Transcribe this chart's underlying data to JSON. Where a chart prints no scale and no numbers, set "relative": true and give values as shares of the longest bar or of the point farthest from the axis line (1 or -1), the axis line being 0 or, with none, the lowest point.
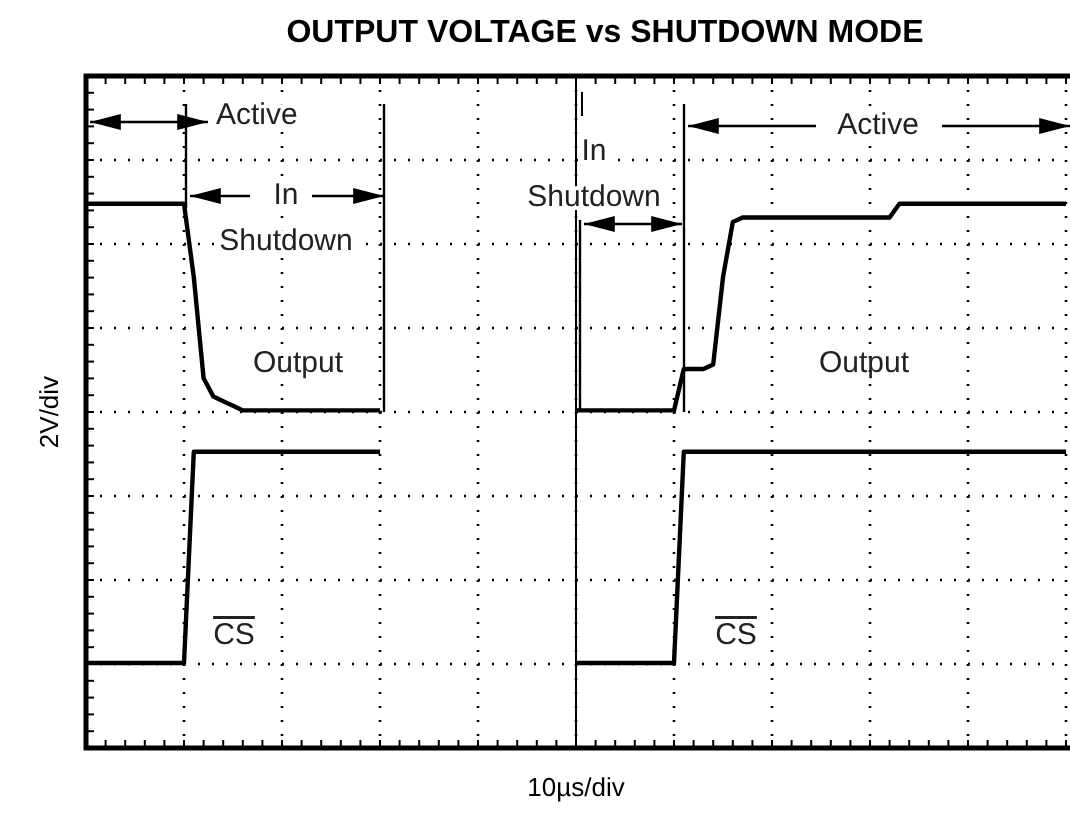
{
  "chart_data": {
    "type": "line",
    "title": "OUTPUT VOLTAGE vs SHUTDOWN MODE",
    "xlabel": "10µs/div",
    "ylabel": "2V/div",
    "relative": true,
    "grid": true,
    "categories": [
      null,
      null,
      null,
      null,
      null,
      null,
      null,
      null,
      null,
      null,
      null,
      null,
      null,
      null,
      null,
      null,
      null,
      null,
      null,
      null,
      null,
      null,
      null,
      null,
      null,
      null,
      null,
      null,
      null,
      null,
      null,
      null,
      null,
      null,
      null,
      null,
      null,
      null,
      null,
      null,
      null,
      null,
      null,
      null,
      null,
      null,
      null,
      null,
      null,
      null,
      null,
      null,
      null,
      null,
      null,
      null,
      null,
      null,
      null,
      null,
      null,
      null,
      null,
      null,
      null,
      null,
      null,
      null,
      null,
      null,
      null,
      null,
      null,
      null,
      null,
      null,
      null,
      null,
      null,
      null,
      null,
      null,
      null,
      null,
      null,
      null,
      null,
      null,
      null,
      null,
      null,
      null,
      null,
      null,
      null,
      null,
      null,
      null,
      null,
      null,
      null
    ],
    "series": [
      {
        "name": "Output",
        "color": "#000000",
        "values": [
          1,
          1,
          1,
          1,
          1,
          1,
          1,
          1,
          1,
          1,
          1,
          0.84,
          0.62,
          0.58,
          0.57,
          0.56,
          0.55,
          0.55,
          0.55,
          0.55,
          0.55,
          0.55,
          0.55,
          0.55,
          0.55,
          0.55,
          0.55,
          0.55,
          0.55,
          0.55,
          0.55,
          null,
          null,
          null,
          null,
          null,
          null,
          null,
          null,
          null,
          null,
          null,
          null,
          null,
          null,
          null,
          null,
          null,
          null,
          null,
          0.55,
          0.55,
          0.55,
          0.55,
          0.55,
          0.55,
          0.55,
          0.55,
          0.55,
          0.55,
          0.55,
          0.64,
          0.64,
          0.64,
          0.65,
          0.84,
          0.96,
          0.97,
          0.97,
          0.97,
          0.97,
          0.97,
          0.97,
          0.97,
          0.97,
          0.97,
          0.97,
          0.97,
          0.97,
          0.97,
          0.97,
          0.97,
          0.97,
          1,
          1,
          1,
          1,
          1,
          1,
          1,
          1,
          1,
          1,
          1,
          1,
          1,
          1,
          1,
          1,
          1,
          1
        ]
      },
      {
        "name": "CS",
        "color": "#000000",
        "values": [
          0,
          0,
          0,
          0,
          0,
          0,
          0,
          0,
          0,
          0,
          0,
          0.46,
          0.46,
          0.46,
          0.46,
          0.46,
          0.46,
          0.46,
          0.46,
          0.46,
          0.46,
          0.46,
          0.46,
          0.46,
          0.46,
          0.46,
          0.46,
          0.46,
          0.46,
          0.46,
          0.46,
          null,
          null,
          null,
          null,
          null,
          null,
          null,
          null,
          null,
          null,
          null,
          null,
          null,
          null,
          null,
          null,
          null,
          null,
          null,
          0,
          0,
          0,
          0,
          0,
          0,
          0,
          0,
          0,
          0,
          0,
          0.46,
          0.46,
          0.46,
          0.46,
          0.46,
          0.46,
          0.46,
          0.46,
          0.46,
          0.46,
          0.46,
          0.46,
          0.46,
          0.46,
          0.46,
          0.46,
          0.46,
          0.46,
          0.46,
          0.46,
          0.46,
          0.46,
          0.46,
          0.46,
          0.46,
          0.46,
          0.46,
          0.46,
          0.46,
          0.46,
          0.46,
          0.46,
          0.46,
          0.46,
          0.46,
          0.46,
          0.46,
          0.46,
          0.46,
          0.46
        ]
      }
    ],
    "annotations": [
      "Active",
      "In Shutdown",
      "In Shutdown",
      "Active"
    ]
  }
}
